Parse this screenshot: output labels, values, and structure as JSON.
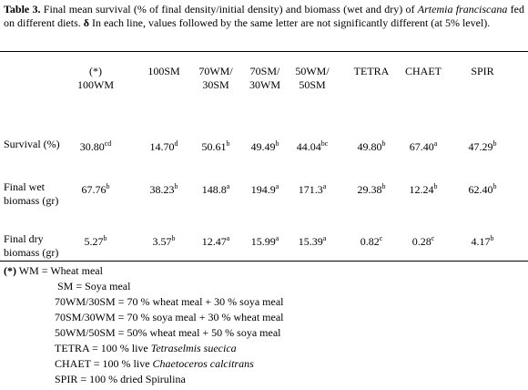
{
  "caption": {
    "label": "Table 3.",
    "text_1": " Final mean survival (% of final density/initial density) and biomass (wet and dry) of ",
    "species": "Artemia franciscana",
    "text_2": " fed on different diets. ",
    "symbol": "δ",
    "text_3": " In each line, values followed by the same letter are not significantly different (at 5% level)."
  },
  "table": {
    "columns": [
      [
        "(*)",
        "100WM"
      ],
      [
        "100SM"
      ],
      [
        "70WM/",
        "30SM"
      ],
      [
        "70SM/",
        "30WM"
      ],
      [
        "50WM/",
        "50SM"
      ],
      [
        "TETRA"
      ],
      [
        "CHAET"
      ],
      [
        "SPIR"
      ]
    ],
    "rows": [
      {
        "label": [
          "Survival (%)"
        ],
        "cells": [
          {
            "value": "30.80",
            "letter": "cd"
          },
          {
            "value": "14.70",
            "letter": "d"
          },
          {
            "value": "50.61",
            "letter": "b"
          },
          {
            "value": "49.49",
            "letter": "b"
          },
          {
            "value": "44.04",
            "letter": "bc"
          },
          {
            "value": "49.80",
            "letter": "b"
          },
          {
            "value": "67.40",
            "letter": "a"
          },
          {
            "value": "47.29",
            "letter": "b"
          }
        ]
      },
      {
        "label": [
          "Final wet",
          "biomass (gr)"
        ],
        "cells": [
          {
            "value": "67.76",
            "letter": "b"
          },
          {
            "value": "38.23",
            "letter": "b"
          },
          {
            "value": "148.8",
            "letter": "a"
          },
          {
            "value": "194.9",
            "letter": "a"
          },
          {
            "value": "171.3",
            "letter": "a"
          },
          {
            "value": "29.38",
            "letter": "b"
          },
          {
            "value": "12.24",
            "letter": "b"
          },
          {
            "value": "62.40",
            "letter": "b"
          }
        ]
      },
      {
        "label": [
          "Final dry",
          "biomass (gr)"
        ],
        "cells": [
          {
            "value": "5.27",
            "letter": "b"
          },
          {
            "value": "3.57",
            "letter": "b"
          },
          {
            "value": "12.47",
            "letter": "a"
          },
          {
            "value": "15.99",
            "letter": "a"
          },
          {
            "value": "15.39",
            "letter": "a"
          },
          {
            "value": "0.82",
            "letter": "c"
          },
          {
            "value": "0.28",
            "letter": "c"
          },
          {
            "value": "4.17",
            "letter": "b"
          }
        ]
      }
    ]
  },
  "footnotes": [
    {
      "marker": "(*)",
      "text": " WM = Wheat meal"
    },
    {
      "text": "SM = Soya meal"
    },
    {
      "text": "70WM/30SM = 70 % wheat meal + 30 % soya meal"
    },
    {
      "text": "70SM/30WM = 70 % soya meal + 30 % wheat meal"
    },
    {
      "text": "50WM/50SM = 50% wheat meal + 50 % soya meal"
    },
    {
      "text": "TETRA = 100 % live ",
      "italic": "Tetraselmis suecica"
    },
    {
      "text": "CHAET = 100 % live ",
      "italic": "Chaetoceros calcitrans"
    },
    {
      "text": "SPIR = 100 % dried Spirulina"
    }
  ]
}
